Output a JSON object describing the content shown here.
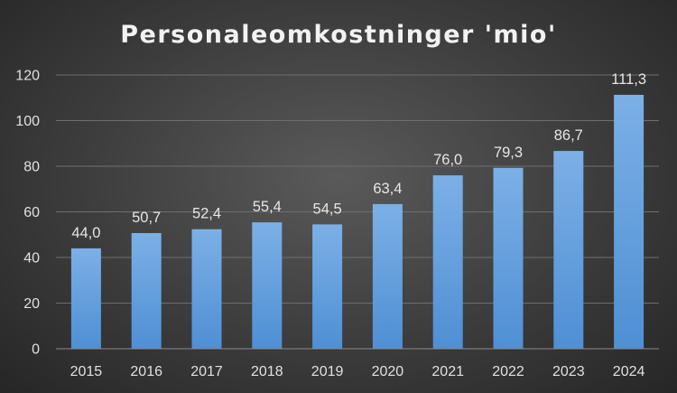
{
  "chart_data": {
    "type": "bar",
    "title": "Personaleomkostninger 'mio'",
    "xlabel": "",
    "ylabel": "",
    "categories": [
      "2015",
      "2016",
      "2017",
      "2018",
      "2019",
      "2020",
      "2021",
      "2022",
      "2023",
      "2024"
    ],
    "values": [
      44.0,
      50.7,
      52.4,
      55.4,
      54.5,
      63.4,
      76.0,
      79.3,
      86.7,
      111.3
    ],
    "data_labels": [
      "44,0",
      "50,7",
      "52,4",
      "55,4",
      "54,5",
      "63,4",
      "76,0",
      "79,3",
      "86,7",
      "111,3"
    ],
    "ylim": [
      0,
      120
    ],
    "yticks": [
      "0",
      "20",
      "40",
      "60",
      "80",
      "100",
      "120"
    ],
    "grid": true,
    "legend": "none",
    "colors": {
      "bar_top": "#7cb0e6",
      "bar_bottom": "#4f8fd4",
      "background": "#3c3c3c",
      "text": "#e6e6e6"
    }
  }
}
